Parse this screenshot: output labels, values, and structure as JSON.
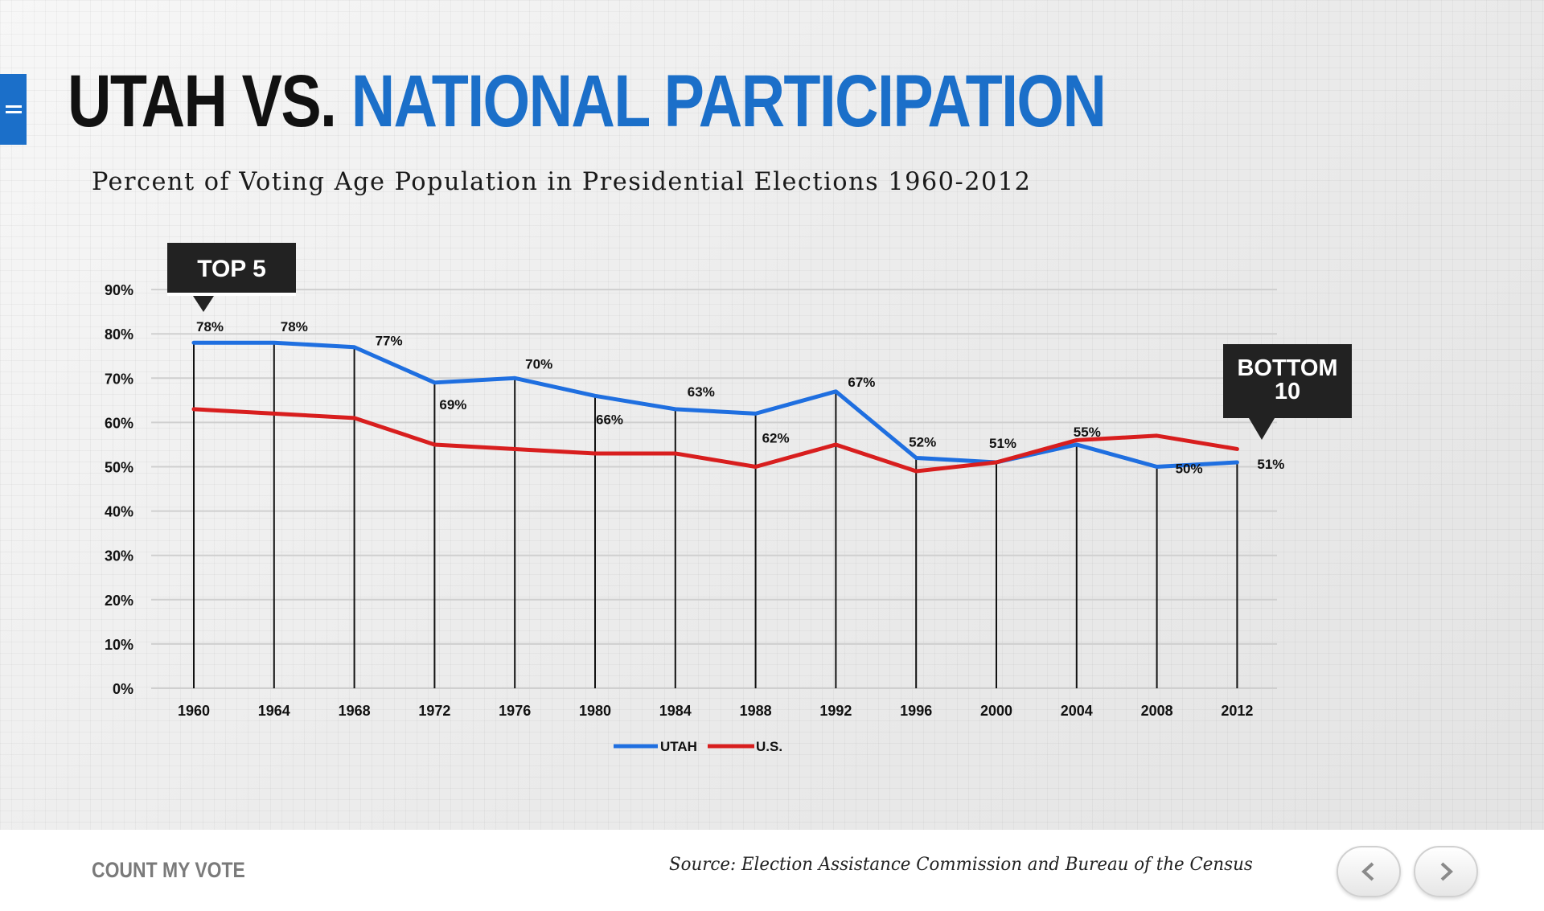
{
  "header": {
    "title_part1": "UTAH VS.",
    "title_part2": "NATIONAL PARTICIPATION",
    "subtitle": "Percent of Voting Age Population in Presidential Elections 1960-2012"
  },
  "menu": {
    "icon": "hamburger-menu-icon"
  },
  "callouts": {
    "top": "TOP 5",
    "bottom_line1": "BOTTOM",
    "bottom_line2": "10"
  },
  "footer": {
    "brand": "COUNT MY VOTE",
    "source": "Source: Election Assistance Commission and Bureau of the Census",
    "prev_icon": "chevron-left-icon",
    "next_icon": "chevron-right-icon"
  },
  "colors": {
    "utah": "#1f6fe0",
    "us": "#d81e1e",
    "accent": "#1b6fc9",
    "callout_bg": "#222222"
  },
  "chart_data": {
    "type": "line",
    "title": "Percent of Voting Age Population in Presidential Elections 1960-2012",
    "categories": [
      "1960",
      "1964",
      "1968",
      "1972",
      "1976",
      "1980",
      "1984",
      "1988",
      "1992",
      "1996",
      "2000",
      "2004",
      "2008",
      "2012"
    ],
    "ylim": [
      0,
      90
    ],
    "yticks": [
      "0%",
      "10%",
      "20%",
      "30%",
      "40%",
      "50%",
      "60%",
      "70%",
      "80%",
      "90%"
    ],
    "series": [
      {
        "name": "UTAH",
        "color": "#1f6fe0",
        "values": [
          78,
          78,
          77,
          69,
          70,
          66,
          63,
          62,
          67,
          52,
          51,
          55,
          50,
          51
        ],
        "labels": [
          "78%",
          "78%",
          "77%",
          "69%",
          "70%",
          "66%",
          "63%",
          "62%",
          "67%",
          "52%",
          "51%",
          "55%",
          "50%",
          "51%"
        ]
      },
      {
        "name": "U.S.",
        "color": "#d81e1e",
        "values": [
          63,
          62,
          61,
          55,
          54,
          53,
          53,
          50,
          55,
          49,
          51,
          56,
          57,
          54
        ]
      }
    ],
    "legend": [
      "UTAH",
      "U.S."
    ]
  }
}
